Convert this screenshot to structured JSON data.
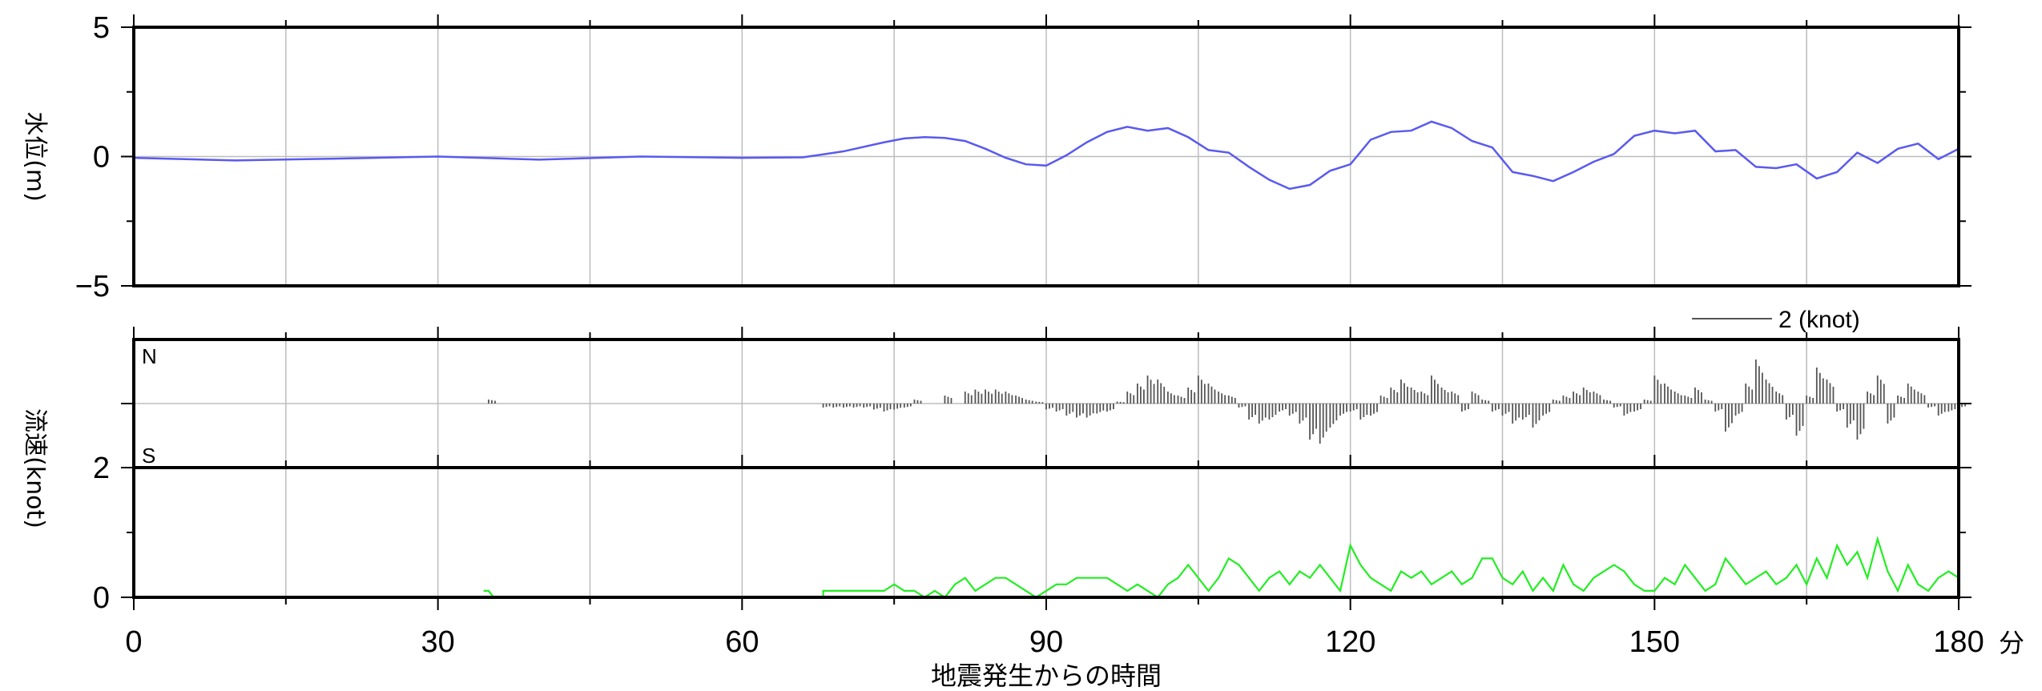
{
  "chart_data": [
    {
      "id": "water_level",
      "type": "line",
      "ylabel": "水位(m)",
      "ylim": [
        -5,
        5
      ],
      "yticks": [
        -5,
        0,
        5
      ],
      "ytick_labels": [
        "−5",
        "0",
        "5"
      ],
      "xlim": [
        0,
        180
      ],
      "grid": true,
      "series": [
        {
          "color": "#5a5af0",
          "x": [
            0,
            10,
            20,
            30,
            40,
            50,
            60,
            66,
            70,
            74,
            76,
            78,
            80,
            82,
            84,
            86,
            88,
            90,
            92,
            94,
            96,
            98,
            100,
            102,
            104,
            106,
            108,
            110,
            112,
            114,
            116,
            118,
            120,
            122,
            124,
            126,
            128,
            130,
            132,
            134,
            136,
            138,
            140,
            142,
            144,
            146,
            148,
            150,
            152,
            154,
            156,
            158,
            160,
            162,
            164,
            166,
            168,
            170,
            172,
            174,
            176,
            178,
            180
          ],
          "y": [
            -0.05,
            -0.15,
            -0.08,
            0.0,
            -0.12,
            0.0,
            -0.05,
            -0.03,
            0.2,
            0.55,
            0.7,
            0.75,
            0.72,
            0.6,
            0.3,
            -0.05,
            -0.3,
            -0.35,
            0.05,
            0.55,
            0.95,
            1.15,
            1.0,
            1.1,
            0.75,
            0.25,
            0.15,
            -0.4,
            -0.9,
            -1.25,
            -1.1,
            -0.55,
            -0.3,
            0.65,
            0.95,
            1.0,
            1.35,
            1.1,
            0.6,
            0.35,
            -0.6,
            -0.75,
            -0.95,
            -0.6,
            -0.2,
            0.1,
            0.8,
            1.0,
            0.9,
            1.0,
            0.2,
            0.25,
            -0.4,
            -0.45,
            -0.3,
            -0.85,
            -0.6,
            0.15,
            -0.25,
            0.3,
            0.5,
            -0.1,
            0.3
          ]
        }
      ]
    },
    {
      "id": "current_direction",
      "type": "scatter",
      "direction_labels": [
        "N",
        "S"
      ],
      "scale_label": "2 (knot)",
      "scale_value": 2,
      "series": [
        {
          "color": "#555555",
          "x": [
            35,
            68,
            69,
            70,
            71,
            72,
            73,
            74,
            75,
            76,
            77,
            80,
            82,
            83,
            84,
            85,
            86,
            87,
            88,
            89,
            90,
            91,
            92,
            93,
            94,
            95,
            96,
            97,
            98,
            99,
            100,
            101,
            102,
            103,
            104,
            105,
            106,
            107,
            108,
            109,
            110,
            111,
            112,
            113,
            114,
            115,
            116,
            117,
            118,
            119,
            120,
            121,
            122,
            123,
            124,
            125,
            126,
            127,
            128,
            129,
            130,
            131,
            132,
            133,
            134,
            135,
            136,
            137,
            138,
            139,
            140,
            141,
            142,
            143,
            144,
            145,
            146,
            147,
            148,
            149,
            150,
            151,
            152,
            153,
            154,
            155,
            156,
            157,
            158,
            159,
            160,
            161,
            162,
            163,
            164,
            165,
            166,
            167,
            168,
            169,
            170,
            171,
            172,
            173,
            174,
            175,
            176,
            177,
            178,
            179,
            180
          ],
          "y": [
            0.1,
            -0.1,
            -0.1,
            -0.1,
            -0.1,
            -0.1,
            -0.15,
            -0.2,
            -0.15,
            -0.1,
            0.1,
            0.2,
            0.3,
            0.35,
            0.35,
            0.35,
            0.3,
            0.2,
            0.1,
            0.05,
            -0.15,
            -0.2,
            -0.3,
            -0.35,
            -0.35,
            -0.25,
            -0.2,
            0.05,
            0.3,
            0.5,
            0.7,
            0.6,
            0.3,
            0.2,
            0.4,
            0.7,
            0.5,
            0.3,
            0.2,
            -0.1,
            -0.4,
            -0.5,
            -0.4,
            -0.2,
            -0.3,
            -0.5,
            -0.9,
            -1.0,
            -0.6,
            -0.3,
            -0.2,
            -0.4,
            -0.3,
            0.2,
            0.4,
            0.6,
            0.4,
            0.3,
            0.7,
            0.4,
            0.3,
            -0.2,
            0.3,
            0.1,
            -0.2,
            -0.3,
            -0.5,
            -0.4,
            -0.6,
            -0.3,
            0.1,
            0.2,
            0.3,
            0.4,
            0.3,
            0.1,
            -0.1,
            -0.3,
            -0.2,
            0.1,
            0.7,
            0.5,
            0.3,
            0.2,
            0.4,
            0.1,
            -0.2,
            -0.7,
            -0.3,
            0.5,
            1.1,
            0.6,
            0.3,
            -0.4,
            -0.8,
            0.2,
            0.9,
            0.6,
            -0.2,
            -0.6,
            -0.9,
            0.3,
            0.7,
            -0.5,
            0.2,
            0.5,
            0.3,
            -0.1,
            -0.3,
            -0.2,
            -0.1
          ]
        }
      ]
    },
    {
      "id": "current_speed",
      "type": "line",
      "ylabel": "流速(knot)",
      "ylim": [
        0,
        2
      ],
      "yticks": [
        0,
        2
      ],
      "ytick_labels": [
        "0",
        "2"
      ],
      "xlim": [
        0,
        180
      ],
      "xticks": [
        0,
        30,
        60,
        90,
        120,
        150,
        180
      ],
      "xtick_labels": [
        "0",
        "30",
        "60",
        "90",
        "120",
        "150",
        "180"
      ],
      "xunit": "分",
      "xlabel": "地震発生からの時間",
      "grid": true,
      "series": [
        {
          "color": "#22ee22",
          "x": [
            34.5,
            35,
            35.5,
            68,
            74,
            75,
            76,
            77,
            78,
            79,
            80,
            81,
            82,
            83,
            84,
            85,
            86,
            87,
            88,
            89,
            90,
            91,
            92,
            93,
            94,
            95,
            96,
            97,
            98,
            99,
            100,
            101,
            102,
            103,
            104,
            105,
            106,
            107,
            108,
            109,
            110,
            111,
            112,
            113,
            114,
            115,
            116,
            117,
            118,
            119,
            120,
            121,
            122,
            123,
            124,
            125,
            126,
            127,
            128,
            129,
            130,
            131,
            132,
            133,
            134,
            135,
            136,
            137,
            138,
            139,
            140,
            141,
            142,
            143,
            144,
            145,
            146,
            147,
            148,
            149,
            150,
            151,
            152,
            153,
            154,
            155,
            156,
            157,
            158,
            159,
            160,
            161,
            162,
            163,
            164,
            165,
            166,
            167,
            168,
            169,
            170,
            171,
            172,
            173,
            174,
            175,
            176,
            177,
            178,
            179,
            180
          ],
          "y": [
            0.1,
            0.1,
            0.0,
            0.1,
            0.1,
            0.2,
            0.1,
            0.1,
            0.0,
            0.1,
            0.0,
            0.2,
            0.3,
            0.1,
            0.2,
            0.3,
            0.3,
            0.2,
            0.1,
            0.0,
            0.1,
            0.2,
            0.2,
            0.3,
            0.3,
            0.3,
            0.3,
            0.2,
            0.1,
            0.2,
            0.1,
            0.0,
            0.2,
            0.3,
            0.5,
            0.3,
            0.1,
            0.3,
            0.6,
            0.5,
            0.3,
            0.1,
            0.3,
            0.4,
            0.2,
            0.4,
            0.3,
            0.5,
            0.3,
            0.1,
            0.8,
            0.5,
            0.3,
            0.2,
            0.1,
            0.4,
            0.3,
            0.4,
            0.2,
            0.3,
            0.4,
            0.2,
            0.3,
            0.6,
            0.6,
            0.3,
            0.2,
            0.4,
            0.1,
            0.3,
            0.1,
            0.5,
            0.2,
            0.1,
            0.3,
            0.4,
            0.5,
            0.4,
            0.2,
            0.1,
            0.1,
            0.3,
            0.2,
            0.5,
            0.3,
            0.1,
            0.2,
            0.6,
            0.4,
            0.2,
            0.3,
            0.4,
            0.2,
            0.3,
            0.5,
            0.2,
            0.6,
            0.3,
            0.8,
            0.5,
            0.7,
            0.3,
            0.9,
            0.4,
            0.1,
            0.5,
            0.2,
            0.1,
            0.3,
            0.4,
            0.3
          ]
        }
      ]
    }
  ]
}
